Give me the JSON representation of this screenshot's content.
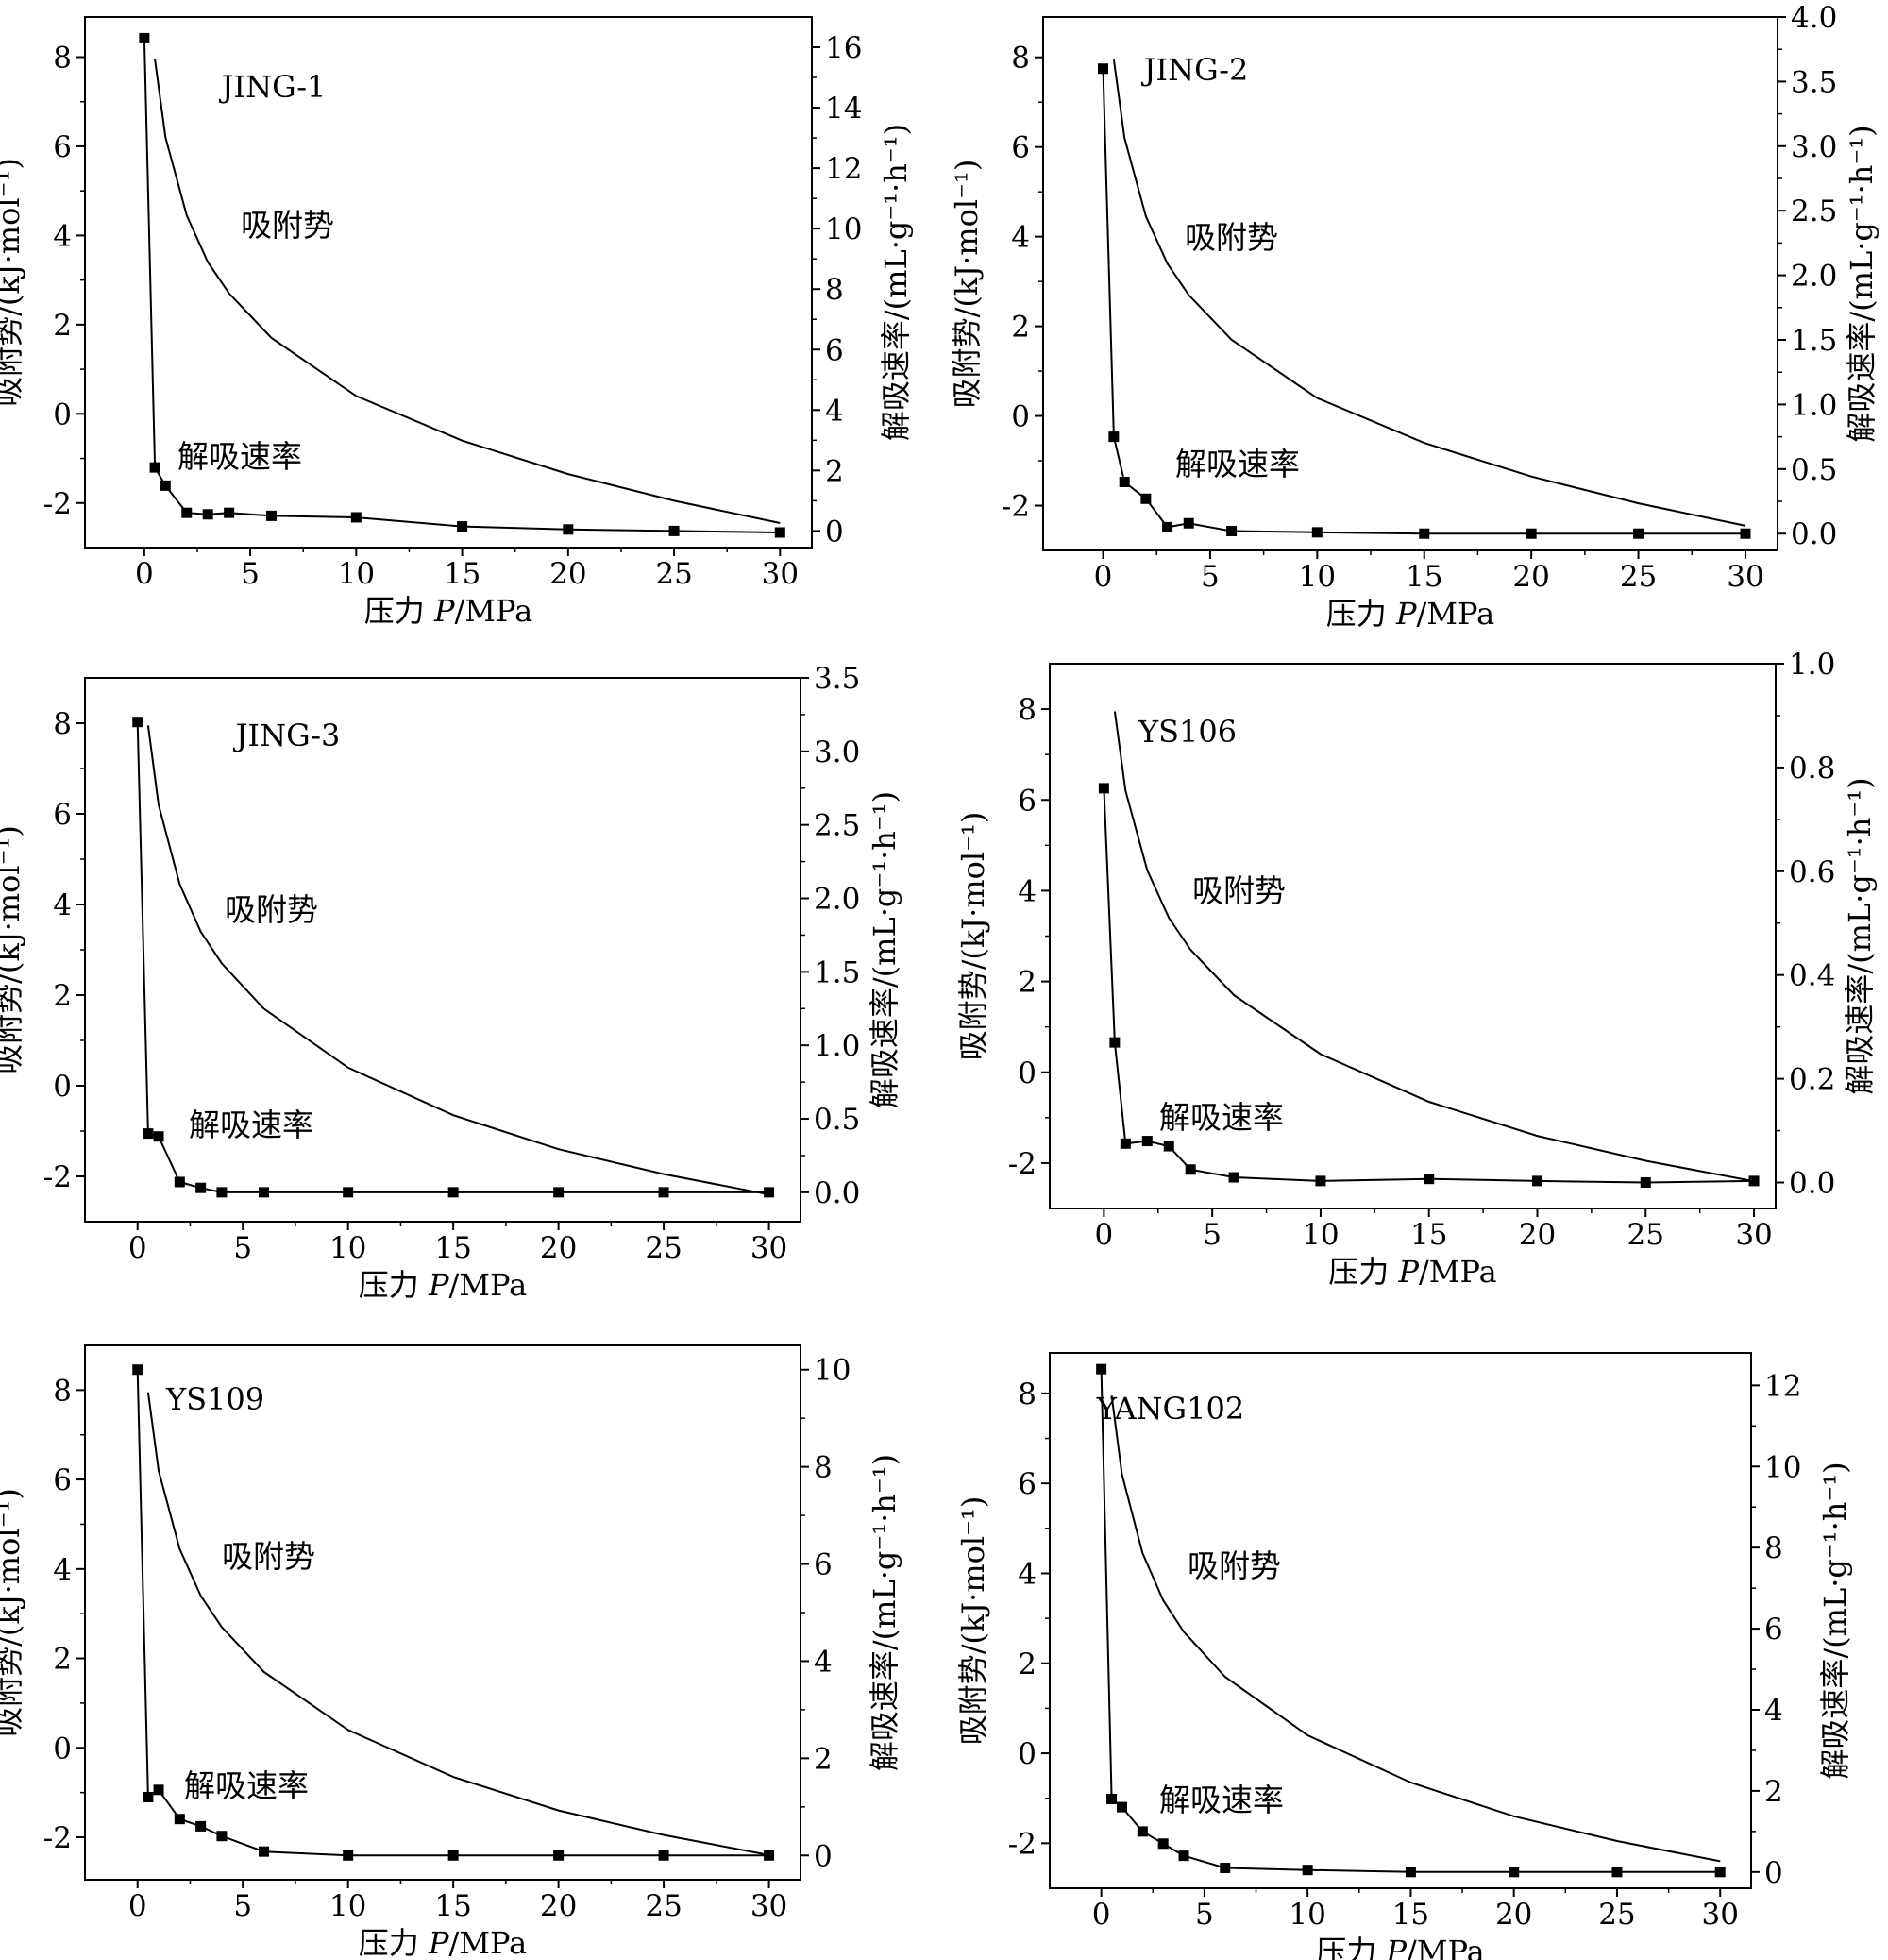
{
  "figure": {
    "x_axis_label_cn": "压力",
    "x_axis_label_var": "P",
    "x_axis_label_unit": "/MPa",
    "left_axis_label": "吸附势/(kJ·mol⁻¹)",
    "right_axis_label": "解吸速率/(mL·g⁻¹·h⁻¹)"
  },
  "chart_data": [
    {
      "type": "line",
      "name": "JING-1",
      "xlim": [
        -2.8,
        31.5
      ],
      "ylim_left": [
        -3.0,
        8.9
      ],
      "ylim_right": [
        -0.55,
        17.0
      ],
      "x_ticks": [
        0,
        5,
        10,
        15,
        20,
        25,
        30
      ],
      "y_left_ticks": [
        -2,
        0,
        2,
        4,
        6,
        8
      ],
      "y_right_ticks": [
        0,
        2,
        4,
        6,
        8,
        10,
        12,
        14,
        16
      ],
      "y_right_tick_labels": [
        "0",
        "2",
        "4",
        "6",
        "8",
        "10",
        "12",
        "14",
        "16"
      ],
      "series": [
        {
          "name": "吸附势",
          "axis": "left",
          "markers": false,
          "x": [
            0.5,
            1,
            2,
            3,
            4,
            6,
            10,
            15,
            20,
            25,
            30
          ],
          "y": [
            7.95,
            6.2,
            4.45,
            3.4,
            2.7,
            1.7,
            0.4,
            -0.6,
            -1.35,
            -1.95,
            -2.45
          ]
        },
        {
          "name": "解吸速率",
          "axis": "right",
          "markers": true,
          "x": [
            0,
            0.5,
            1,
            2,
            3,
            4,
            6,
            10,
            15,
            20,
            25,
            30
          ],
          "y": [
            16.3,
            2.1,
            1.5,
            0.6,
            0.55,
            0.6,
            0.5,
            0.45,
            0.15,
            0.05,
            0.0,
            -0.05
          ]
        }
      ]
    },
    {
      "type": "line",
      "name": "JING-2",
      "xlim": [
        -2.8,
        31.5
      ],
      "ylim_left": [
        -3.0,
        8.9
      ],
      "ylim_right": [
        -0.13,
        4.0
      ],
      "x_ticks": [
        0,
        5,
        10,
        15,
        20,
        25,
        30
      ],
      "y_left_ticks": [
        -2,
        0,
        2,
        4,
        6,
        8
      ],
      "y_right_ticks": [
        0,
        0.5,
        1.0,
        1.5,
        2.0,
        2.5,
        3.0,
        3.5,
        4.0
      ],
      "y_right_tick_labels": [
        "0.0",
        "0.5",
        "1.0",
        "1.5",
        "2.0",
        "2.5",
        "3.0",
        "3.5",
        "4.0"
      ],
      "series": [
        {
          "name": "吸附势",
          "axis": "left",
          "markers": false,
          "x": [
            0.5,
            1,
            2,
            3,
            4,
            6,
            10,
            15,
            20,
            25,
            30
          ],
          "y": [
            7.95,
            6.2,
            4.45,
            3.4,
            2.7,
            1.7,
            0.4,
            -0.6,
            -1.35,
            -1.95,
            -2.45
          ]
        },
        {
          "name": "解吸速率",
          "axis": "right",
          "markers": true,
          "x": [
            0,
            0.5,
            1,
            2,
            3,
            4,
            6,
            10,
            15,
            20,
            25,
            30
          ],
          "y": [
            3.6,
            0.75,
            0.4,
            0.27,
            0.05,
            0.08,
            0.02,
            0.01,
            0.0,
            0.0,
            0.0,
            0.0
          ]
        }
      ]
    },
    {
      "type": "line",
      "name": "JING-3",
      "xlim": [
        -2.5,
        31.5
      ],
      "ylim_left": [
        -3.0,
        9.0
      ],
      "ylim_right": [
        -0.2,
        3.5
      ],
      "x_ticks": [
        0,
        5,
        10,
        15,
        20,
        25,
        30
      ],
      "y_left_ticks": [
        -2,
        0,
        2,
        4,
        6,
        8
      ],
      "y_right_ticks": [
        0,
        0.5,
        1.0,
        1.5,
        2.0,
        2.5,
        3.0,
        3.5
      ],
      "y_right_tick_labels": [
        "0.0",
        "0.5",
        "1.0",
        "1.5",
        "2.0",
        "2.5",
        "3.0",
        "3.5"
      ],
      "series": [
        {
          "name": "吸附势",
          "axis": "left",
          "markers": false,
          "x": [
            0.5,
            1,
            2,
            3,
            4,
            6,
            10,
            15,
            20,
            25,
            30
          ],
          "y": [
            7.95,
            6.2,
            4.45,
            3.4,
            2.7,
            1.7,
            0.4,
            -0.65,
            -1.4,
            -1.95,
            -2.4
          ]
        },
        {
          "name": "解吸速率",
          "axis": "right",
          "markers": true,
          "x": [
            0,
            0.5,
            1,
            2,
            3,
            4,
            6,
            10,
            15,
            20,
            25,
            30
          ],
          "y": [
            3.2,
            0.4,
            0.38,
            0.07,
            0.03,
            0.0,
            0.0,
            0.0,
            0.0,
            0.0,
            0.0,
            0.0
          ]
        }
      ]
    },
    {
      "type": "line",
      "name": "YS106",
      "xlim": [
        -2.5,
        31.0
      ],
      "ylim_left": [
        -3.0,
        9.0
      ],
      "ylim_right": [
        -0.05,
        1.0
      ],
      "x_ticks": [
        0,
        5,
        10,
        15,
        20,
        25,
        30
      ],
      "y_left_ticks": [
        -2,
        0,
        2,
        4,
        6,
        8
      ],
      "y_right_ticks": [
        0,
        0.2,
        0.4,
        0.6,
        0.8,
        1.0
      ],
      "y_right_tick_labels": [
        "0.0",
        "0.2",
        "0.4",
        "0.6",
        "0.8",
        "1.0"
      ],
      "series": [
        {
          "name": "吸附势",
          "axis": "left",
          "markers": false,
          "x": [
            0.5,
            1,
            2,
            3,
            4,
            6,
            10,
            15,
            20,
            25,
            30
          ],
          "y": [
            7.95,
            6.2,
            4.45,
            3.4,
            2.7,
            1.7,
            0.4,
            -0.65,
            -1.4,
            -1.95,
            -2.4
          ]
        },
        {
          "name": "解吸速率",
          "axis": "right",
          "markers": true,
          "x": [
            0,
            0.5,
            1,
            2,
            3,
            4,
            6,
            10,
            15,
            20,
            25,
            30
          ],
          "y": [
            0.76,
            0.27,
            0.075,
            0.08,
            0.07,
            0.025,
            0.01,
            0.003,
            0.007,
            0.003,
            0.0,
            0.003
          ]
        }
      ]
    },
    {
      "type": "line",
      "name": "YS109",
      "xlim": [
        -2.5,
        31.5
      ],
      "ylim_left": [
        -2.95,
        9.0
      ],
      "ylim_right": [
        -0.5,
        10.5
      ],
      "x_ticks": [
        0,
        5,
        10,
        15,
        20,
        25,
        30
      ],
      "y_left_ticks": [
        -2,
        0,
        2,
        4,
        6,
        8
      ],
      "y_right_ticks": [
        0,
        2,
        4,
        6,
        8,
        10
      ],
      "y_right_tick_labels": [
        "0",
        "2",
        "4",
        "6",
        "8",
        "10"
      ],
      "series": [
        {
          "name": "吸附势",
          "axis": "left",
          "markers": false,
          "x": [
            0.5,
            1,
            2,
            3,
            4,
            6,
            10,
            15,
            20,
            25,
            30
          ],
          "y": [
            7.95,
            6.2,
            4.45,
            3.4,
            2.7,
            1.7,
            0.4,
            -0.65,
            -1.4,
            -1.95,
            -2.4
          ]
        },
        {
          "name": "解吸速率",
          "axis": "right",
          "markers": true,
          "x": [
            0,
            0.5,
            1,
            2,
            3,
            4,
            6,
            10,
            15,
            20,
            25,
            30
          ],
          "y": [
            10.0,
            1.2,
            1.35,
            0.75,
            0.6,
            0.4,
            0.08,
            0.0,
            0.0,
            0.0,
            0.0,
            0.0
          ]
        }
      ]
    },
    {
      "type": "line",
      "name": "YANG102",
      "xlim": [
        -2.5,
        31.5
      ],
      "ylim_left": [
        -3.0,
        8.9
      ],
      "ylim_right": [
        -0.4,
        12.8
      ],
      "x_ticks": [
        0,
        5,
        10,
        15,
        20,
        25,
        30
      ],
      "y_left_ticks": [
        -2,
        0,
        2,
        4,
        6,
        8
      ],
      "y_right_ticks": [
        0,
        2,
        4,
        6,
        8,
        10,
        12
      ],
      "y_right_tick_labels": [
        "0",
        "2",
        "4",
        "6",
        "8",
        "10",
        "12"
      ],
      "series": [
        {
          "name": "吸附势",
          "axis": "left",
          "markers": false,
          "x": [
            0.5,
            1,
            2,
            3,
            4,
            6,
            10,
            15,
            20,
            25,
            30
          ],
          "y": [
            7.95,
            6.2,
            4.45,
            3.4,
            2.7,
            1.7,
            0.4,
            -0.65,
            -1.4,
            -1.95,
            -2.4
          ]
        },
        {
          "name": "解吸速率",
          "axis": "right",
          "markers": true,
          "x": [
            0,
            0.5,
            1,
            2,
            3,
            4,
            6,
            10,
            15,
            20,
            25,
            30
          ],
          "y": [
            12.4,
            1.8,
            1.6,
            1.0,
            0.7,
            0.4,
            0.1,
            0.05,
            0.0,
            0.0,
            0.0,
            0.0
          ]
        }
      ]
    }
  ]
}
